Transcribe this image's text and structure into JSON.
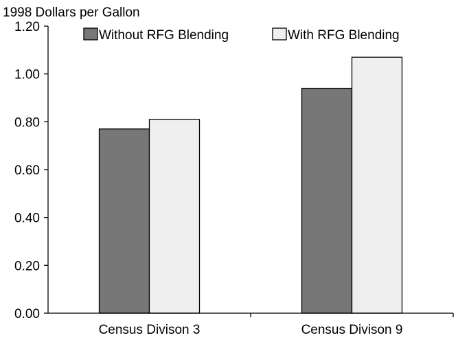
{
  "chart_data": {
    "type": "bar",
    "ylabel": "1998 Dollars per Gallon",
    "categories": [
      "Census Divison 3",
      "Census Divison 9"
    ],
    "series": [
      {
        "name": "Without RFG Blending",
        "values": [
          0.77,
          0.94
        ],
        "color": "#777777"
      },
      {
        "name": "With RFG Blending",
        "values": [
          0.81,
          1.07
        ],
        "color": "#efefef"
      }
    ],
    "ylim": [
      0,
      1.2
    ],
    "yticks": [
      "0.00",
      "0.20",
      "0.40",
      "0.60",
      "0.80",
      "1.00",
      "1.20"
    ],
    "grid": false,
    "legend": "top"
  }
}
